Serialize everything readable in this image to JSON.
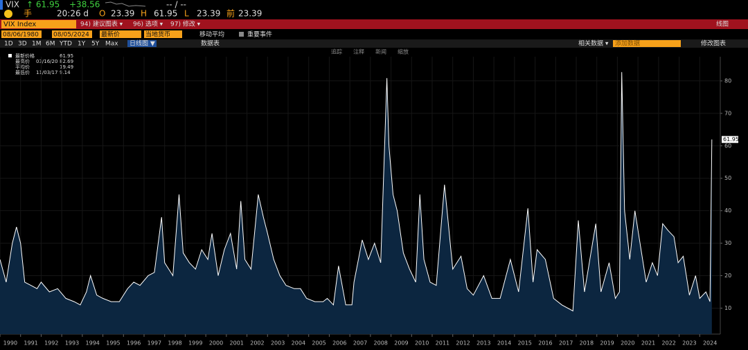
{
  "header": {
    "ticker": "VIX",
    "last": "↑ 61.95",
    "change": "+38.56",
    "quote_sep": "-- / --",
    "time": "20:26 d",
    "open_label": "O",
    "open": "23.39",
    "high_label": "H",
    "high": "61.95",
    "low_label": "L",
    "low": "23.39",
    "prev_label": "前",
    "prev": "23.39",
    "hand": "手"
  },
  "toolbar": {
    "security": "VIX Index",
    "buttons": [
      "94) 建议图表 ▾",
      "96) 选项 ▾",
      "97) 修改 ▾"
    ],
    "mode": "线图"
  },
  "settings": {
    "start": "08/06/1980",
    "end": "08/05/2024",
    "field": "最新价",
    "currency": "当地货币",
    "moving_average": "移动平均",
    "events": "重要事件"
  },
  "ranges": {
    "periods": [
      "1D",
      "3D",
      "1M",
      "6M",
      "YTD",
      "1Y",
      "5Y",
      "Max"
    ],
    "frequency": "日线图 ▼",
    "table": "数据表",
    "related": "相关数据 ▾",
    "add_data": "添加数据",
    "edit": "修改图表"
  },
  "tools": [
    "追踪",
    "注释",
    "新闻",
    "缩放"
  ],
  "chart_data": {
    "type": "line",
    "title": "VIX Index",
    "legend_stats": [
      {
        "label": "最新价格",
        "date": "",
        "value": 61.95
      },
      {
        "label": "最高价",
        "date": "03/16/20",
        "value": 82.69
      },
      {
        "label": "平均价",
        "date": "",
        "value": 19.49
      },
      {
        "label": "最低价",
        "date": "11/03/17",
        "value": 9.14
      }
    ],
    "x": [
      1990.0,
      1990.3,
      1990.6,
      1990.8,
      1991.0,
      1991.2,
      1991.5,
      1991.8,
      1992.0,
      1992.4,
      1992.8,
      1993.2,
      1993.6,
      1993.9,
      1994.2,
      1994.4,
      1994.7,
      1995.0,
      1995.4,
      1995.8,
      1996.2,
      1996.5,
      1996.8,
      1997.2,
      1997.5,
      1997.85,
      1998.0,
      1998.4,
      1998.7,
      1998.9,
      1999.2,
      1999.5,
      1999.8,
      2000.1,
      2000.3,
      2000.6,
      2000.9,
      2001.2,
      2001.5,
      2001.7,
      2001.9,
      2002.2,
      2002.55,
      2002.8,
      2003.0,
      2003.3,
      2003.6,
      2003.9,
      2004.3,
      2004.6,
      2004.9,
      2005.3,
      2005.7,
      2005.9,
      2006.2,
      2006.45,
      2006.8,
      2007.1,
      2007.2,
      2007.6,
      2007.9,
      2008.2,
      2008.5,
      2008.8,
      2008.9,
      2009.1,
      2009.3,
      2009.6,
      2009.9,
      2010.2,
      2010.4,
      2010.6,
      2010.9,
      2011.2,
      2011.6,
      2011.8,
      2012.0,
      2012.4,
      2012.7,
      2013.0,
      2013.5,
      2013.9,
      2014.3,
      2014.8,
      2015.2,
      2015.65,
      2015.9,
      2016.1,
      2016.5,
      2016.9,
      2017.3,
      2017.84,
      2018.1,
      2018.4,
      2018.95,
      2019.2,
      2019.6,
      2019.9,
      2020.1,
      2020.21,
      2020.35,
      2020.6,
      2020.85,
      2021.1,
      2021.4,
      2021.7,
      2021.95,
      2022.2,
      2022.45,
      2022.75,
      2022.95,
      2023.2,
      2023.5,
      2023.8,
      2024.0,
      2024.3,
      2024.5,
      2024.59
    ],
    "series": [
      {
        "name": "VIX Index",
        "color": "#ffffff",
        "fill": "#0c2640",
        "values": [
          25,
          18,
          30,
          35,
          30,
          18,
          17,
          16,
          18,
          15,
          16,
          13,
          12,
          11,
          15,
          20,
          14,
          13,
          12,
          12,
          16,
          18,
          17,
          20,
          21,
          38,
          24,
          20,
          45,
          27,
          24,
          22,
          28,
          25,
          33,
          20,
          28,
          33,
          22,
          43,
          25,
          22,
          45,
          38,
          33,
          25,
          20,
          17,
          16,
          16,
          13,
          12,
          12,
          13,
          11,
          23,
          11,
          11,
          18,
          31,
          25,
          30,
          24,
          80.86,
          60,
          45,
          40,
          27,
          22,
          18,
          45,
          25,
          18,
          17,
          48,
          35,
          22,
          26,
          16,
          14,
          20,
          13,
          13,
          25,
          15,
          40.74,
          18,
          28,
          25,
          13,
          11,
          9.14,
          37,
          15,
          36,
          15,
          24,
          13,
          15,
          82.69,
          40,
          25,
          40,
          30,
          18,
          24,
          20,
          36,
          34,
          32,
          24,
          26,
          14,
          20,
          13,
          15,
          12,
          61.95
        ]
      }
    ],
    "xlim": [
      1990,
      2025
    ],
    "xticks": [
      1990,
      1991,
      1992,
      1993,
      1994,
      1995,
      1996,
      1997,
      1998,
      1999,
      2000,
      2001,
      2002,
      2003,
      2004,
      2005,
      2006,
      2007,
      2008,
      2009,
      2010,
      2011,
      2012,
      2013,
      2014,
      2015,
      2016,
      2017,
      2018,
      2019,
      2020,
      2021,
      2022,
      2023,
      2024
    ],
    "ylim": [
      2,
      90
    ],
    "yticks": [
      10,
      20,
      30,
      40,
      50,
      60,
      70,
      80
    ],
    "grid": true
  }
}
